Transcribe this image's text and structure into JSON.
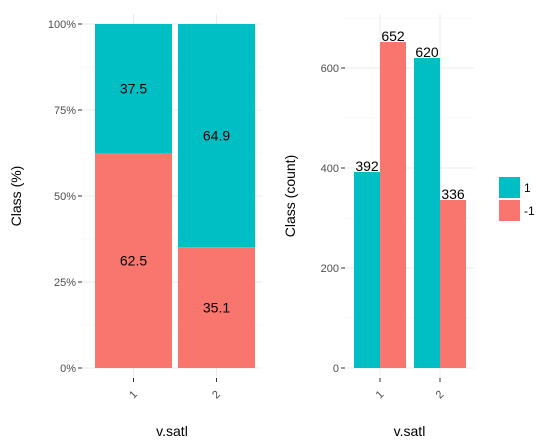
{
  "chart_data": [
    {
      "type": "bar",
      "stacked": true,
      "xlabel": "v.satl",
      "ylabel": "Class  (%)",
      "categories": [
        "1",
        "2"
      ],
      "ylim": [
        0,
        100
      ],
      "yticks": [
        "0%",
        "25%",
        "50%",
        "75%",
        "100%"
      ],
      "ytick_values": [
        0,
        25,
        50,
        75,
        100
      ],
      "series": [
        {
          "name": "-1",
          "color": "#F8766D",
          "values": [
            62.5,
            35.1
          ],
          "labels": [
            "62.5",
            "35.1"
          ]
        },
        {
          "name": "1",
          "color": "#00BFC4",
          "values": [
            37.5,
            64.9
          ],
          "labels": [
            "37.5",
            "64.9"
          ]
        }
      ],
      "grid": true
    },
    {
      "type": "bar",
      "stacked": false,
      "xlabel": "v.satl",
      "ylabel": "Class  (count)",
      "categories": [
        "1",
        "2"
      ],
      "ylim": [
        0,
        700
      ],
      "yticks": [
        "0",
        "200",
        "400",
        "600"
      ],
      "ytick_values": [
        0,
        200,
        400,
        600
      ],
      "series": [
        {
          "name": "1",
          "color": "#00BFC4",
          "values": [
            392,
            620
          ],
          "labels": [
            "392",
            "620"
          ]
        },
        {
          "name": "-1",
          "color": "#F8766D",
          "values": [
            652,
            336
          ],
          "labels": [
            "652",
            "336"
          ]
        }
      ],
      "grid": true
    }
  ],
  "legend": {
    "position": "right",
    "items": [
      {
        "label": "1",
        "color": "#00BFC4"
      },
      {
        "label": "-1",
        "color": "#F8766D"
      }
    ]
  }
}
